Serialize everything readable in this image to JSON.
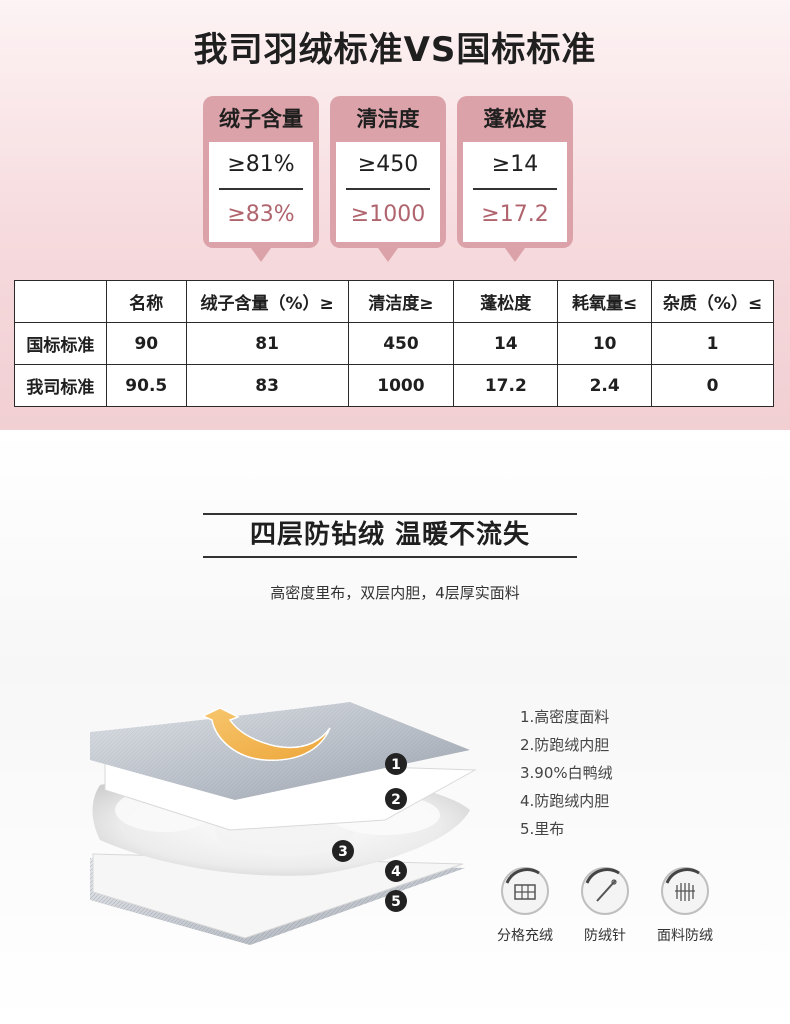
{
  "title": "我司羽绒标准VS国标标准",
  "cards": [
    {
      "head": "绒子含量",
      "standard": "≥81%",
      "ours": "≥83%"
    },
    {
      "head": "清洁度",
      "standard": "≥450",
      "ours": "≥1000"
    },
    {
      "head": "蓬松度",
      "standard": "≥14",
      "ours": "≥17.2"
    }
  ],
  "table": {
    "headers": [
      "",
      "名称",
      "绒子含量（%）≥",
      "清洁度≥",
      "蓬松度",
      "耗氧量≤",
      "杂质（%）≤"
    ],
    "rows": [
      [
        "国标标准",
        "90",
        "81",
        "450",
        "14",
        "10",
        "1"
      ],
      [
        "我司标准",
        "90.5",
        "83",
        "1000",
        "17.2",
        "2.4",
        "0"
      ]
    ]
  },
  "section2": {
    "heading": "四层防钻绒 温暖不流失",
    "subtitle": "高密度里布，双层内胆，4层厚实面料",
    "markers": [
      "1",
      "2",
      "3",
      "4",
      "5"
    ],
    "legend": [
      "1.高密度面料",
      "2.防跑绒内胆",
      "3.90%白鸭绒",
      "4.防跑绒内胆",
      "5.里布"
    ],
    "features": [
      {
        "label": "分格充绒",
        "icon": "grid-quilting-icon"
      },
      {
        "label": "防绒针",
        "icon": "needle-icon"
      },
      {
        "label": "面料防绒",
        "icon": "fabric-shield-icon"
      }
    ],
    "colors": {
      "arrow": "#f2b34c",
      "marker": "#222222"
    }
  },
  "colors": {
    "card": "#dba3a9",
    "accent_text": "#b0646e",
    "top_bg": "#f6dadd"
  }
}
